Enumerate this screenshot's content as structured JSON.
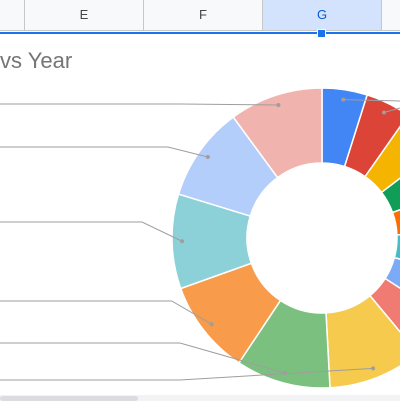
{
  "columns": [
    {
      "label": "",
      "selected": false
    },
    {
      "label": "E",
      "selected": false
    },
    {
      "label": "F",
      "selected": false
    },
    {
      "label": "G",
      "selected": true
    },
    {
      "label": "",
      "selected": false
    }
  ],
  "chart": {
    "title_fragment": "vs Year",
    "accent_color": "#1a73e8"
  },
  "chart_data": {
    "type": "pie",
    "title": "vs Year",
    "donut": true,
    "slices": [
      {
        "value": 4.3,
        "color": "#4285f4"
      },
      {
        "value": 4.3,
        "color": "#db4437"
      },
      {
        "value": 4.3,
        "color": "#f4b400"
      },
      {
        "value": 4.3,
        "color": "#0f9d58"
      },
      {
        "value": 4.3,
        "color": "#ff6d01"
      },
      {
        "value": 4.3,
        "color": "#46bdc6"
      },
      {
        "value": 4.3,
        "color": "#7baaf7"
      },
      {
        "value": 4.3,
        "color": "#f07b72"
      },
      {
        "value": 9.0,
        "color": "#f6cb4d"
      },
      {
        "value": 9.0,
        "color": "#7cc07f"
      },
      {
        "value": 9.0,
        "color": "#f89b4a"
      },
      {
        "value": 9.0,
        "color": "#8cd1d7"
      },
      {
        "value": 9.0,
        "color": "#b3cefb"
      },
      {
        "value": 8.9,
        "color": "#f1b3ad"
      }
    ],
    "legend": "none"
  }
}
